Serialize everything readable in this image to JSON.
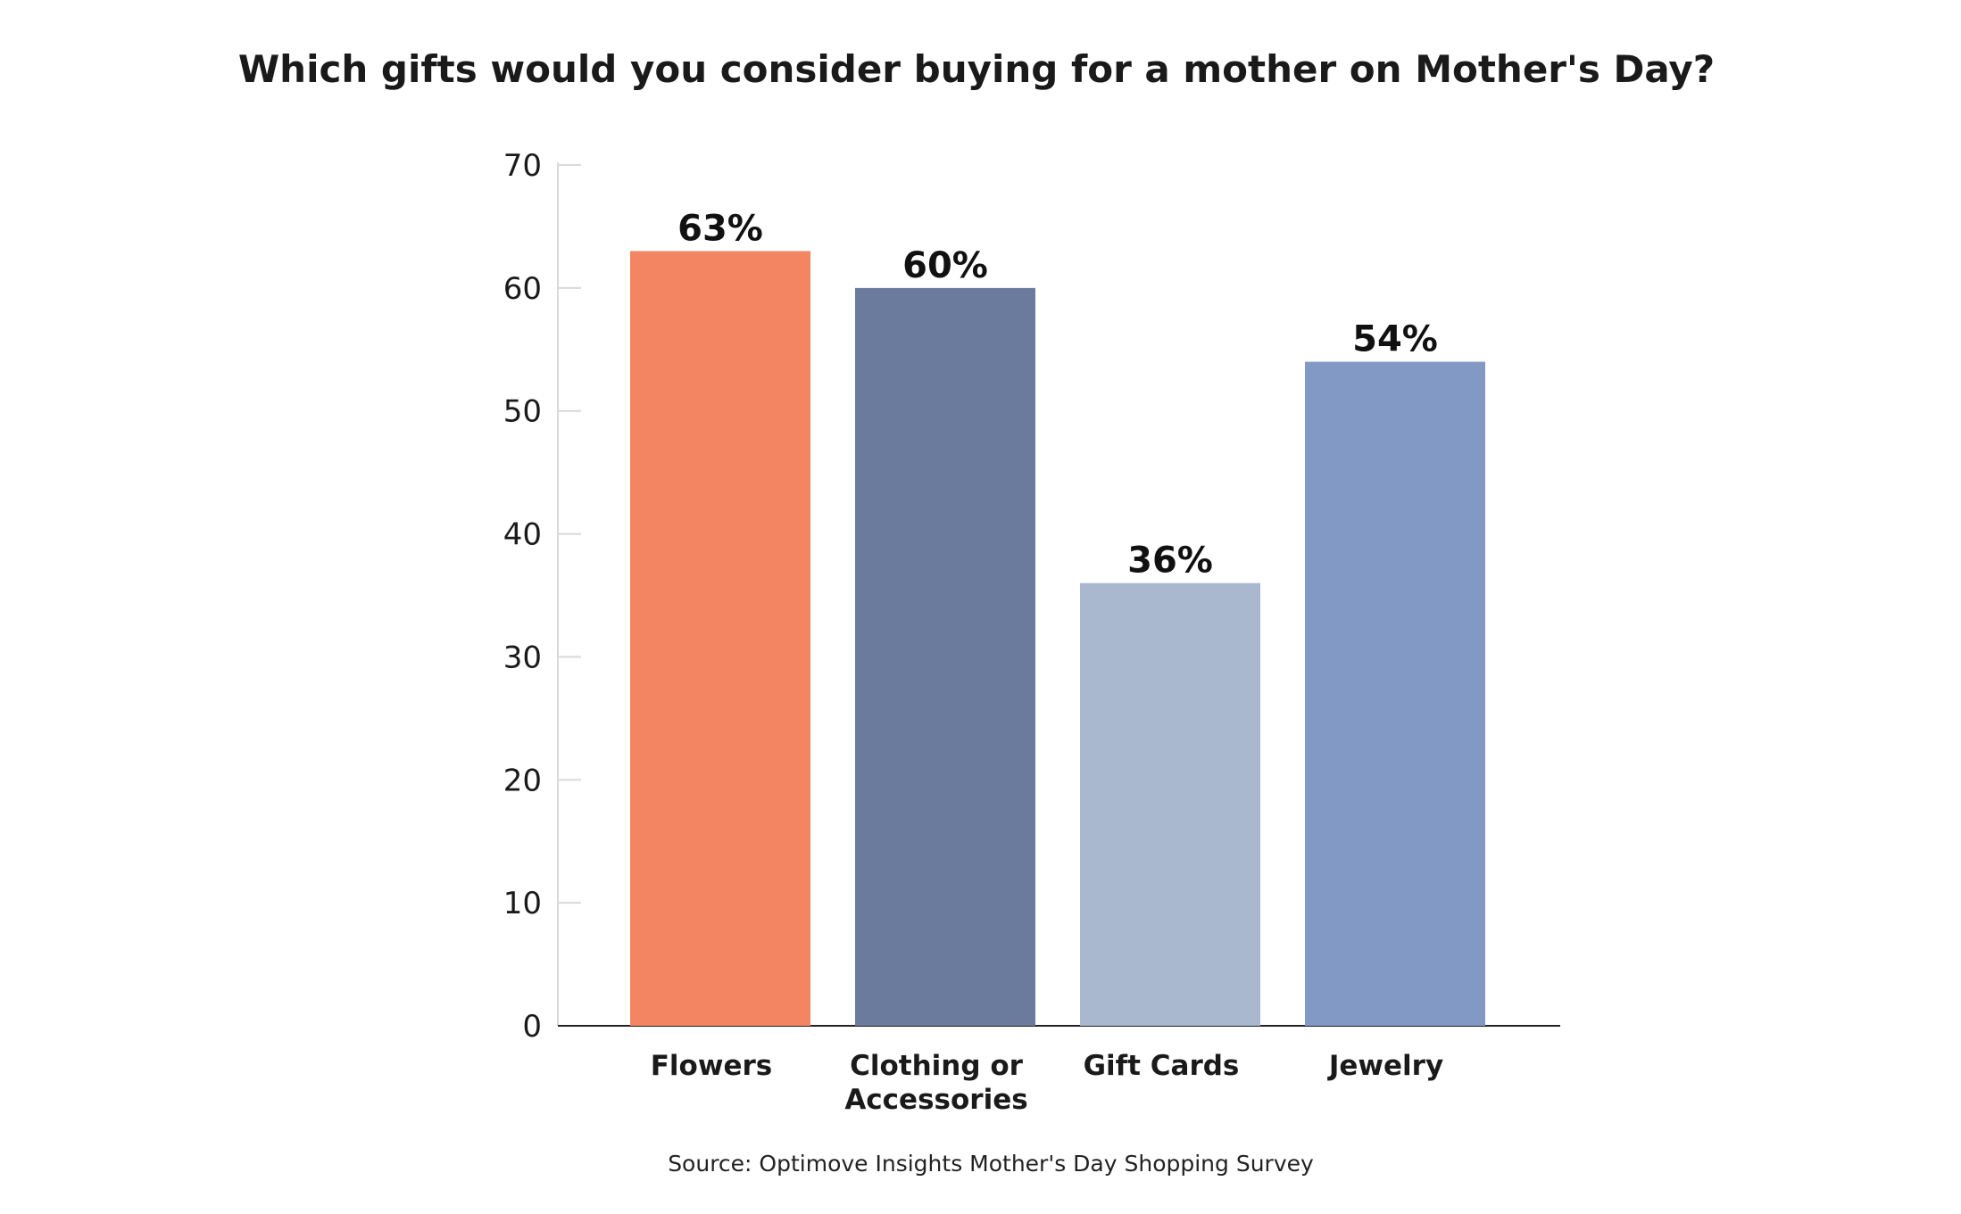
{
  "chart_data": {
    "type": "bar",
    "title": "Which gifts would you consider buying for a mother on Mother's Day?",
    "categories": [
      [
        "Flowers"
      ],
      [
        "Clothing or",
        "Accessories"
      ],
      [
        "Gift Cards"
      ],
      [
        "Jewelry"
      ]
    ],
    "values": [
      63,
      60,
      36,
      54
    ],
    "data_labels": [
      "63%",
      "60%",
      "36%",
      "54%"
    ],
    "colors": [
      "#F38562",
      "#6B7B9E",
      "#A9B8CF",
      "#8299C5"
    ],
    "ylim": [
      0,
      70
    ],
    "yticks": [
      0,
      10,
      20,
      30,
      40,
      50,
      60,
      70
    ],
    "xlabel": "",
    "ylabel": "",
    "grid": false,
    "legend": "none",
    "source": "Source: Optimove Insights Mother's Day Shopping Survey"
  }
}
